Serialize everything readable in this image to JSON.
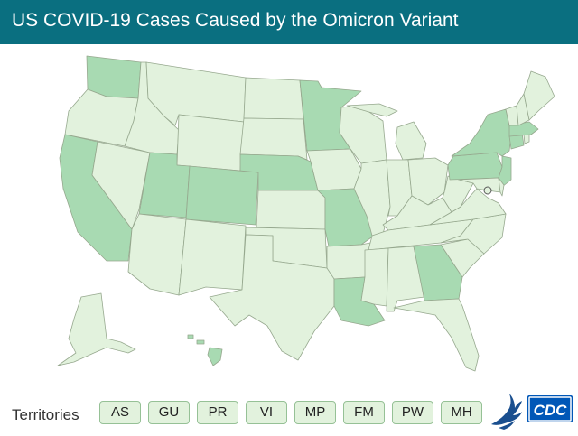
{
  "title": "US COVID-19 Cases Caused by the Omicron Variant",
  "territories_label": "Territories",
  "territories": [
    "AS",
    "GU",
    "PR",
    "VI",
    "MP",
    "FM",
    "PW",
    "MH"
  ],
  "logo_text": "CDC",
  "colors": {
    "header": "#0a6f80",
    "light_fill": "#e2f2dd",
    "medium_fill": "#a8dab2",
    "border": "#96a88e",
    "logo": "#0057b7"
  },
  "map_data": {
    "states_medium": [
      "WA",
      "CA",
      "UT",
      "CO",
      "NE",
      "MN",
      "MO",
      "LA",
      "GA",
      "NY",
      "PA",
      "NJ",
      "MA",
      "CT",
      "HI"
    ],
    "states_light": [
      "OR",
      "ID",
      "MT",
      "WY",
      "NV",
      "AZ",
      "NM",
      "ND",
      "SD",
      "KS",
      "OK",
      "TX",
      "IA",
      "AR",
      "MS",
      "AL",
      "WI",
      "IL",
      "MI",
      "IN",
      "OH",
      "KY",
      "TN",
      "FL",
      "SC",
      "NC",
      "VA",
      "WV",
      "MD",
      "DE",
      "VT",
      "NH",
      "ME",
      "RI",
      "AK",
      "DC"
    ]
  }
}
